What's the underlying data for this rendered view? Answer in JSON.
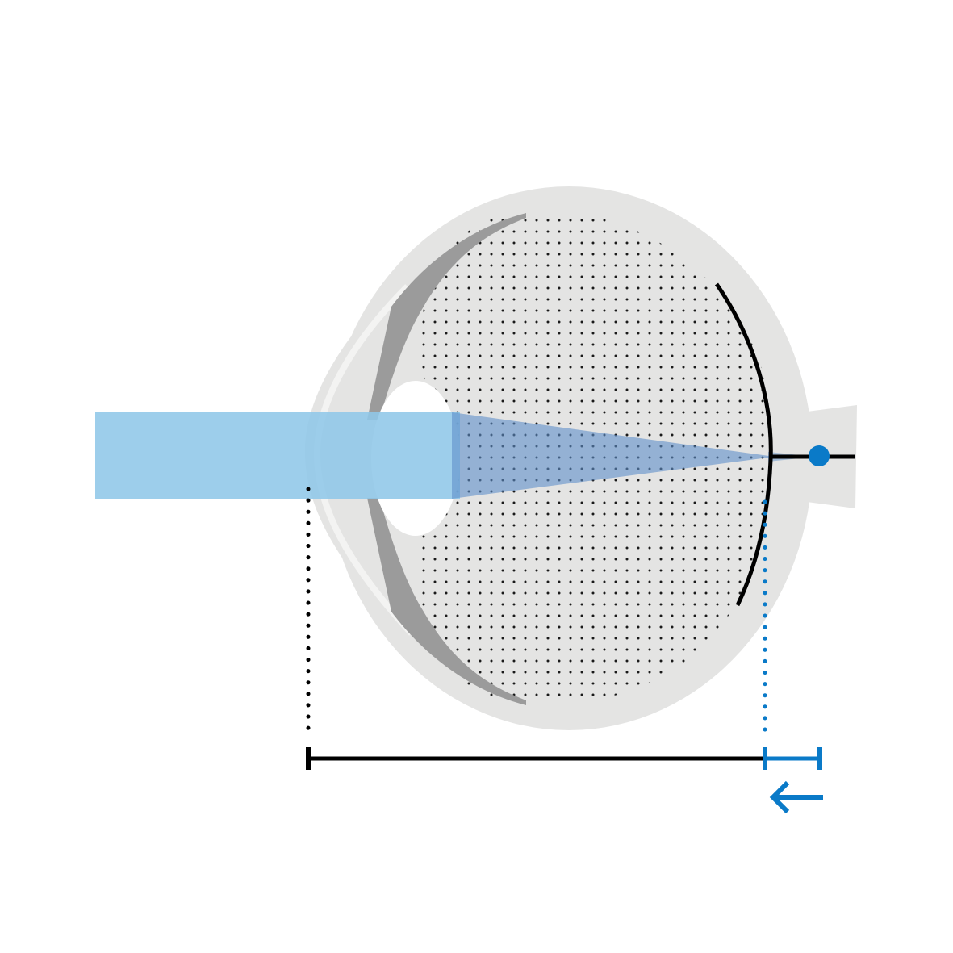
{
  "colors": {
    "background": "#ffffff",
    "sclera": "#e4e4e3",
    "iris": "#9b9b9b",
    "lens": "#ffffff",
    "vitreous_dots": "#1a1a1a",
    "light_beam": "#8fc7e8",
    "focus_cone": "#5f8fc9",
    "retina": "#000000",
    "accent_blue": "#0a7ac8",
    "measure_black": "#000000"
  },
  "icons": {
    "arrow": "arrow-left-icon",
    "focal_point": "focal-point-dot"
  }
}
